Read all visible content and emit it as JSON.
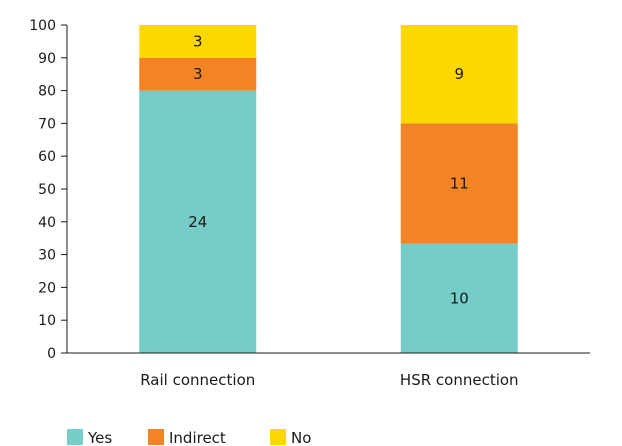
{
  "chart_data": {
    "type": "bar",
    "stacked": true,
    "percent_stacked": true,
    "categories": [
      "Rail connection",
      "HSR connection"
    ],
    "series": [
      {
        "name": "Yes",
        "values": [
          24,
          10
        ],
        "color": "#76cdc7"
      },
      {
        "name": "Indirect",
        "values": [
          3,
          11
        ],
        "color": "#f28426"
      },
      {
        "name": "No",
        "values": [
          3,
          9
        ],
        "color": "#fcd700"
      }
    ],
    "yticks": [
      "0",
      "10",
      "20",
      "30",
      "40",
      "50",
      "60",
      "70",
      "80",
      "90",
      "100"
    ],
    "ylim": [
      0,
      100
    ],
    "grid": false,
    "legend": "bottom-left"
  }
}
